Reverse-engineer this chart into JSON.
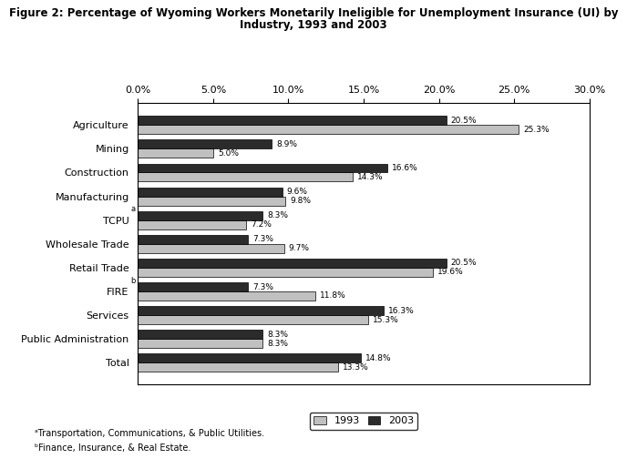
{
  "title_line1": "Figure 2: Percentage of Wyoming Workers Monetarily Ineligible for Unemployment Insurance (UI) by",
  "title_line2": "Industry, 1993 and 2003",
  "categories": [
    "Agriculture",
    "Mining",
    "Construction",
    "Manufacturing",
    "TCPU",
    "Wholesale Trade",
    "Retail Trade",
    "FIRE",
    "Services",
    "Public Administration",
    "Total"
  ],
  "superscripts": [
    null,
    null,
    null,
    "a",
    null,
    null,
    "b",
    null,
    null,
    null,
    null
  ],
  "values_1993": [
    25.3,
    5.0,
    14.3,
    9.8,
    7.2,
    9.7,
    19.6,
    11.8,
    15.3,
    8.3,
    13.3
  ],
  "values_2003": [
    20.5,
    8.9,
    16.6,
    9.6,
    8.3,
    7.3,
    20.5,
    7.3,
    16.3,
    8.3,
    14.8
  ],
  "labels_1993": [
    "25.3%",
    "5.0%",
    "14.3%",
    "9.8%",
    "7.2%",
    "9.7%",
    "19.6%",
    "11.8%",
    "15.3%",
    "8.3%",
    "13.3%"
  ],
  "labels_2003": [
    "20.5%",
    "8.9%",
    "16.6%",
    "9.6%",
    "8.3%",
    "7.3%",
    "20.5%",
    "7.3%",
    "16.3%",
    "8.3%",
    "14.8%"
  ],
  "color_1993": "#c0c0c0",
  "color_2003": "#2b2b2b",
  "xlim": [
    0,
    30
  ],
  "xticks": [
    0,
    5,
    10,
    15,
    20,
    25,
    30
  ],
  "xtick_labels": [
    "0.0%",
    "5.0%",
    "10.0%",
    "15.0%",
    "20.0%",
    "25.0%",
    "30.0%"
  ],
  "legend_labels": [
    "1993",
    "2003"
  ],
  "footnote_a": "Transportation, Communications, & Public Utilities.",
  "footnote_b": "Finance, Insurance, & Real Estate.",
  "bar_height": 0.38,
  "figsize": [
    6.88,
    5.15
  ],
  "dpi": 100
}
